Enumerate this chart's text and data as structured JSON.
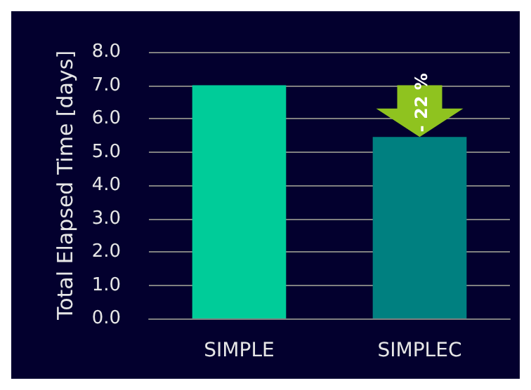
{
  "chart_data": {
    "type": "bar",
    "ylabel": "Total Elapsed Time [days]",
    "categories": [
      "SIMPLE",
      "SIMPLEC"
    ],
    "values": [
      7.0,
      5.45
    ],
    "colors": [
      "#00cc99",
      "#008080"
    ],
    "ylim": [
      0,
      8
    ],
    "yticks": [
      {
        "value": 0,
        "label": "0.0"
      },
      {
        "value": 1,
        "label": "1.0"
      },
      {
        "value": 2,
        "label": "2.0"
      },
      {
        "value": 3,
        "label": "3.0"
      },
      {
        "value": 4,
        "label": "4.0"
      },
      {
        "value": 5,
        "label": "5.0"
      },
      {
        "value": 6,
        "label": "6.0"
      },
      {
        "value": 7,
        "label": "7.0"
      },
      {
        "value": 8,
        "label": "8.0"
      }
    ],
    "grid": "y",
    "annotations": [
      {
        "text": "- 22 %",
        "x": "SIMPLEC",
        "y": 5.45
      }
    ]
  }
}
